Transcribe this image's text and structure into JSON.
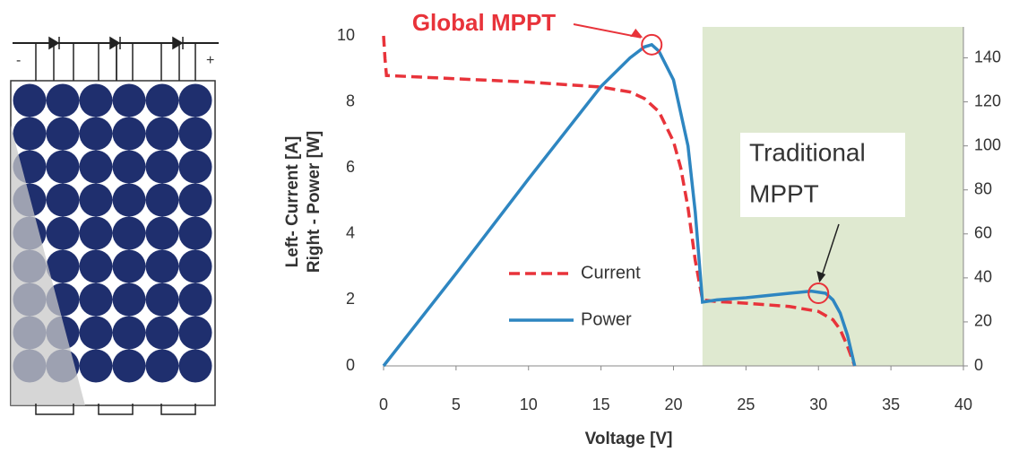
{
  "chart_data": {
    "type": "line",
    "xlabel": "Voltage [V]",
    "ylabel": [
      "Left- Current [A]",
      "Right - Power [W]"
    ],
    "xlim": [
      0,
      40
    ],
    "xticks": [
      0,
      5,
      10,
      15,
      20,
      25,
      30,
      35,
      40
    ],
    "ylim": [
      0,
      10
    ],
    "yticks": [
      0,
      2,
      4,
      6,
      8,
      10
    ],
    "y2lim": [
      0,
      150
    ],
    "y2ticks": [
      0,
      20,
      40,
      60,
      80,
      100,
      120,
      140
    ],
    "shaded_region": {
      "x": [
        22,
        40
      ],
      "color": "#dfe9d0"
    },
    "series": [
      {
        "name": "Current",
        "color": "#e8333a",
        "dash": true,
        "x": [
          0,
          0.1,
          0.2,
          5,
          10,
          15,
          17,
          18,
          19,
          20,
          20.5,
          21,
          21.5,
          22,
          23,
          25,
          28,
          30,
          31,
          31.5,
          32,
          32.5
        ],
        "values": [
          10,
          9.3,
          8.8,
          8.7,
          8.6,
          8.45,
          8.3,
          8.1,
          7.7,
          6.8,
          6,
          4.8,
          3.2,
          2,
          1.95,
          1.9,
          1.8,
          1.65,
          1.4,
          1.1,
          0.6,
          0
        ]
      },
      {
        "name": "Power",
        "color": "#2e86c1",
        "axis": "y2",
        "x": [
          0,
          5,
          10,
          15,
          17,
          18,
          18.5,
          19,
          20,
          21,
          21.5,
          22,
          23,
          25,
          28,
          29.5,
          30.5,
          31,
          31.5,
          32,
          32.5
        ],
        "values": [
          0,
          42,
          85,
          127,
          140,
          145,
          146,
          143,
          130,
          100,
          70,
          29,
          30,
          31,
          33,
          34,
          33,
          30,
          24,
          14,
          0
        ]
      }
    ],
    "annotations": [
      {
        "lines": [
          "Global MPPT"
        ],
        "x": 18.5,
        "y2": 146,
        "color": "#e8333a"
      },
      {
        "lines": [
          "Traditional",
          "MPPT"
        ],
        "x": 30,
        "y2": 33,
        "color": "#e8333a"
      }
    ],
    "legend": "center"
  }
}
